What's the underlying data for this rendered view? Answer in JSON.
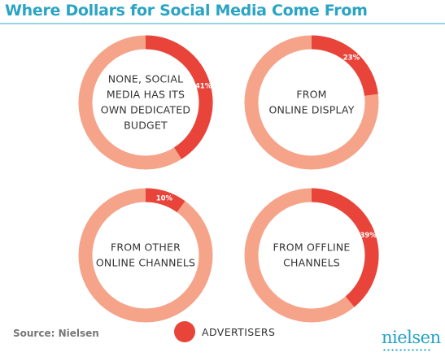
{
  "header": {
    "title": "Where Dollars for Social Media Come From"
  },
  "chart_data": {
    "type": "pie",
    "title": "Where Dollars for Social Media Come From",
    "series_name": "ADVERTISERS",
    "charts": [
      {
        "label_lines": [
          "NONE, SOCIAL",
          "MEDIA HAS ITS",
          "OWN DEDICATED",
          "BUDGET"
        ],
        "value": 41,
        "value_label": "41%"
      },
      {
        "label_lines": [
          "FROM",
          "ONLINE DISPLAY"
        ],
        "value": 23,
        "value_label": "23%"
      },
      {
        "label_lines": [
          "FROM OTHER",
          "ONLINE CHANNELS"
        ],
        "value": 10,
        "value_label": "10%"
      },
      {
        "label_lines": [
          "FROM OFFLINE",
          "CHANNELS"
        ],
        "value": 39,
        "value_label": "39%"
      }
    ],
    "colors": {
      "highlight": "#e8443a",
      "remainder": "#f5a48a"
    }
  },
  "legend": {
    "label": "ADVERTISERS"
  },
  "footer": {
    "source": "Source: Nielsen",
    "logo_text": "nielsen"
  }
}
